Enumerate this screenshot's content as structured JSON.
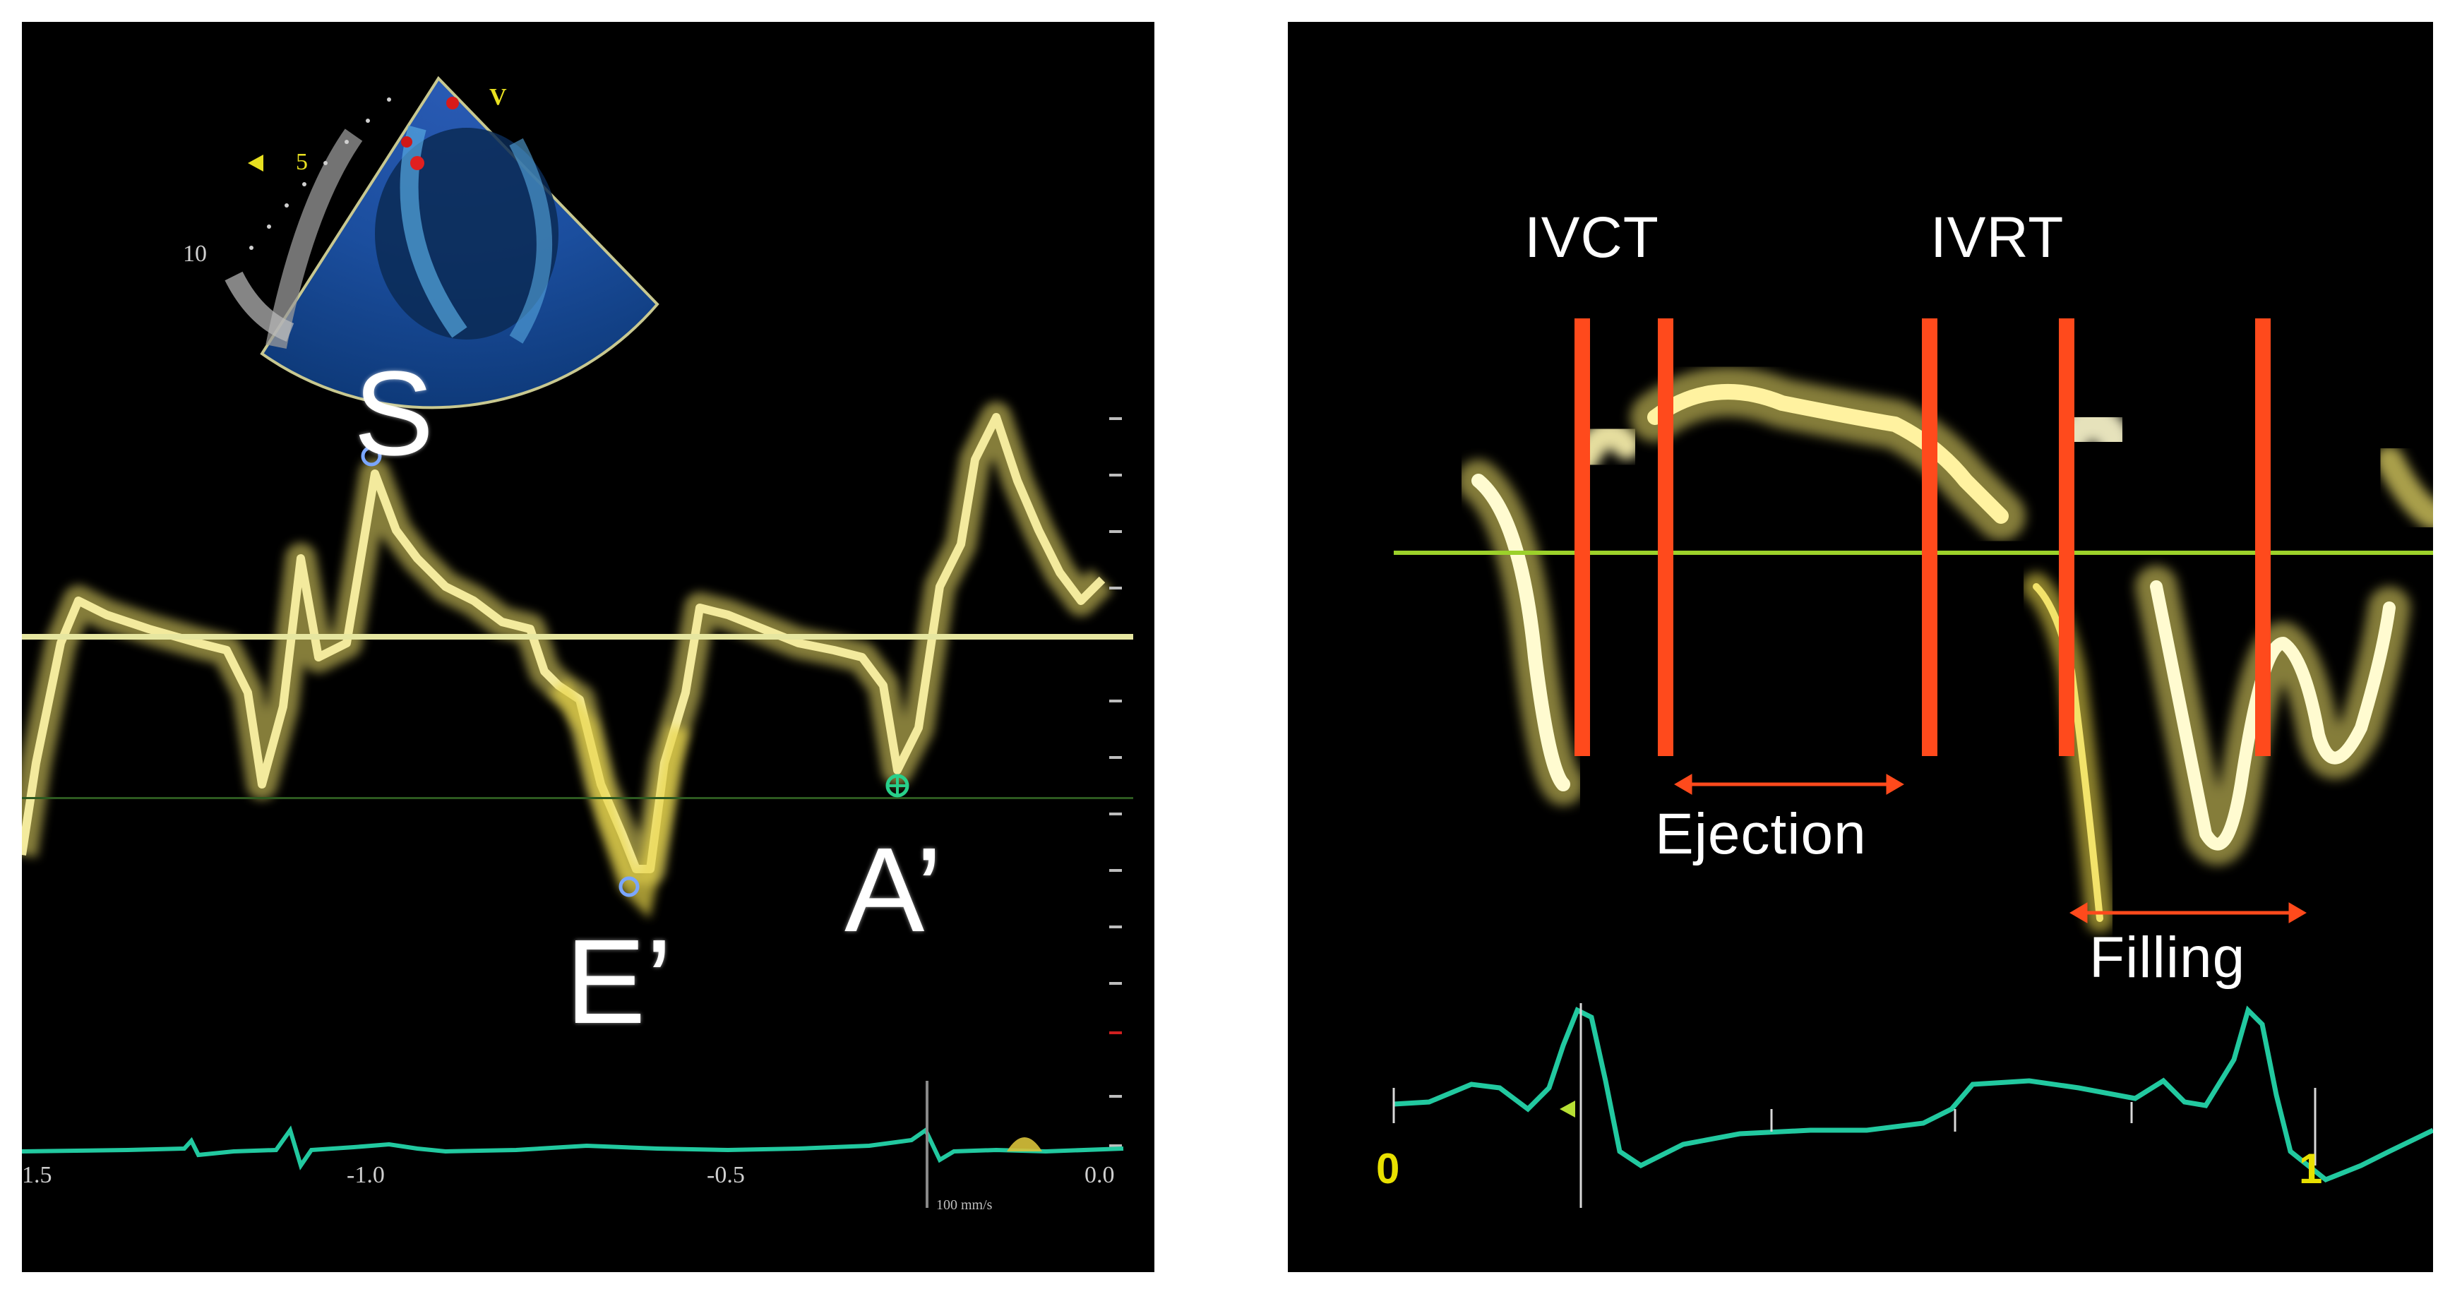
{
  "left_panel": {
    "labels": {
      "s": "S",
      "e": "E’",
      "a": "A’"
    },
    "sector_marks": [
      "V",
      "5",
      "10"
    ],
    "x_ticks": [
      "1.5",
      "-1.0",
      "-0.5",
      "0.0"
    ],
    "scale_note": "100 mm/s"
  },
  "right_panel": {
    "labels": {
      "ivct": "IVCT",
      "ivrt": "IVRT",
      "ejection": "Ejection",
      "filling": "Filling"
    },
    "axis": {
      "start": "0",
      "end": "1"
    }
  },
  "colors": {
    "doppler": "#f2e36a",
    "baseline_left": "#e6e6a0",
    "baseline_right": "#9cd12a",
    "marker": "#ff4a1c",
    "ecg": "#22c9a0"
  }
}
